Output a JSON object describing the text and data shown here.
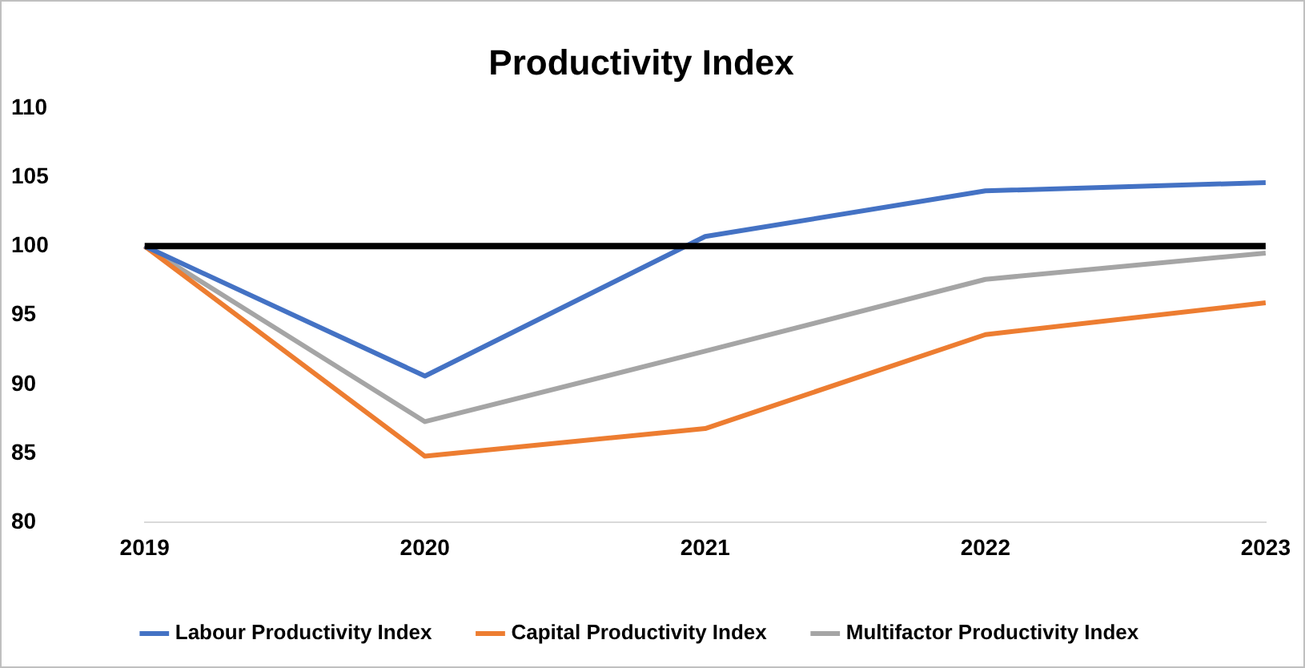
{
  "chart_data": {
    "type": "line",
    "title": "Productivity Index",
    "categories": [
      "2019",
      "2020",
      "2021",
      "2022",
      "2023"
    ],
    "series": [
      {
        "name": "Labour Productivity Index",
        "color": "#4472c4",
        "values": [
          100,
          90.6,
          100.7,
          104,
          104.6
        ]
      },
      {
        "name": "Capital Productivity Index",
        "color": "#ed7d31",
        "values": [
          100,
          84.8,
          86.8,
          93.6,
          95.9
        ]
      },
      {
        "name": "Multifactor Productivity Index",
        "color": "#a5a5a5",
        "values": [
          100,
          87.3,
          92.4,
          97.6,
          99.5
        ]
      }
    ],
    "ylim": [
      80,
      110
    ],
    "yticks": [
      80,
      85,
      90,
      95,
      100,
      105,
      110
    ],
    "grid": false,
    "legend": "bottom",
    "marker": "none",
    "line_style": "solid",
    "ref_lines": [
      {
        "axis": "y",
        "value": 100,
        "color": "#000000"
      }
    ]
  }
}
